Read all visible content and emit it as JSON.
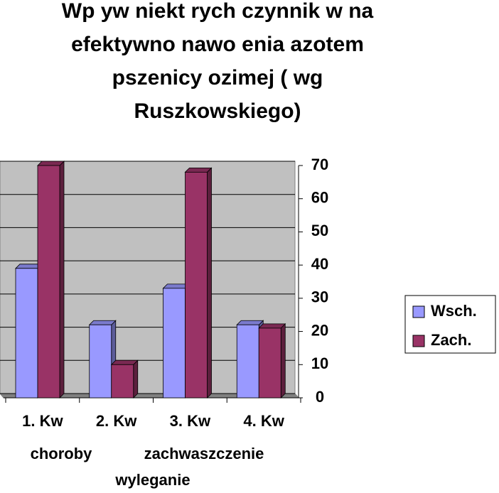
{
  "chart_data": {
    "type": "bar3d",
    "title": [
      "Wp yw niekt  rych czynnik  w na",
      "efektywno     nawo  enia azotem",
      "pszenicy ozimej ( wg",
      "Ruszkowskiego)"
    ],
    "categories": [
      "1. Kw",
      "2. Kw",
      "3. Kw",
      "4. Kw"
    ],
    "annotations": [
      "choroby",
      "zachwaszczenie",
      "wyleganie"
    ],
    "series": [
      {
        "name": "Wsch.",
        "color": "#9999ff",
        "values": [
          39,
          22,
          33,
          22
        ]
      },
      {
        "name": "Zach.",
        "color": "#993366",
        "values": [
          70,
          10,
          68,
          21
        ]
      }
    ],
    "ylim": [
      0,
      70
    ],
    "yticks": [
      0,
      10,
      20,
      30,
      40,
      50,
      60,
      70
    ],
    "grid": true,
    "legend": "right"
  }
}
